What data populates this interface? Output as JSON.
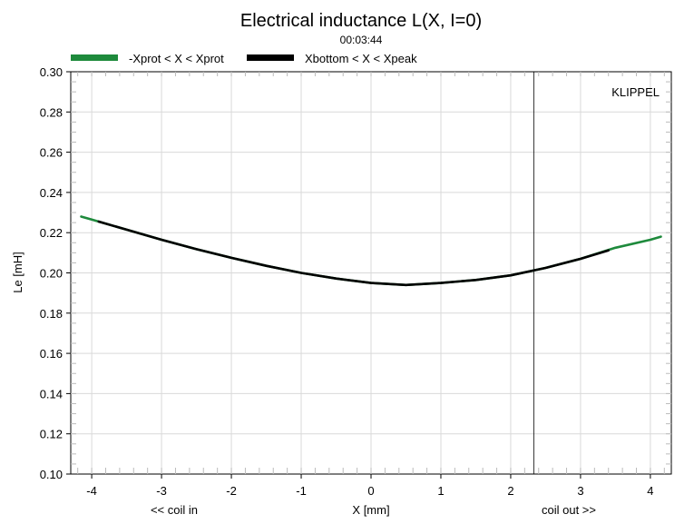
{
  "chart_data": {
    "type": "line",
    "title": "Electrical inductance L(X, I=0)",
    "subtitle": "00:03:44",
    "xlabel": "X [mm]",
    "ylabel": "Le [mH]",
    "x_left_note": "<< coil in",
    "x_right_note": "coil out >>",
    "watermark": "KLIPPEL",
    "xlim": [
      -4.3,
      4.3
    ],
    "ylim": [
      0.1,
      0.3
    ],
    "xticks": [
      "-4",
      "-3",
      "-2",
      "-1",
      "0",
      "1",
      "2",
      "3",
      "4"
    ],
    "yticks": [
      "0.10",
      "0.12",
      "0.14",
      "0.16",
      "0.18",
      "0.20",
      "0.22",
      "0.24",
      "0.26",
      "0.28",
      "0.30"
    ],
    "grid": true,
    "legend_position": "top",
    "vertical_marker_x": 2.33,
    "series": [
      {
        "name": "-Xprot < X < Xprot",
        "color": "#1e8a3c",
        "x": [
          -4.15,
          -4.0,
          -3.5,
          -3.0,
          -2.5,
          -2.0,
          -1.5,
          -1.0,
          -0.5,
          0.0,
          0.5,
          1.0,
          1.5,
          2.0,
          2.5,
          3.0,
          3.5,
          4.0,
          4.15
        ],
        "y": [
          0.228,
          0.2265,
          0.2215,
          0.2165,
          0.2118,
          0.2075,
          0.2035,
          0.2,
          0.1972,
          0.195,
          0.194,
          0.195,
          0.1965,
          0.1988,
          0.2025,
          0.207,
          0.2125,
          0.2165,
          0.218
        ]
      },
      {
        "name": "Xbottom < X < Xpeak",
        "color": "#000000",
        "x": [
          -3.9,
          -3.5,
          -3.0,
          -2.5,
          -2.0,
          -1.5,
          -1.0,
          -0.5,
          0.0,
          0.5,
          1.0,
          1.5,
          2.0,
          2.5,
          3.0,
          3.4
        ],
        "y": [
          0.2255,
          0.2215,
          0.2165,
          0.2118,
          0.2075,
          0.2035,
          0.2,
          0.1972,
          0.195,
          0.194,
          0.195,
          0.1965,
          0.1988,
          0.2025,
          0.207,
          0.2112
        ]
      }
    ]
  }
}
